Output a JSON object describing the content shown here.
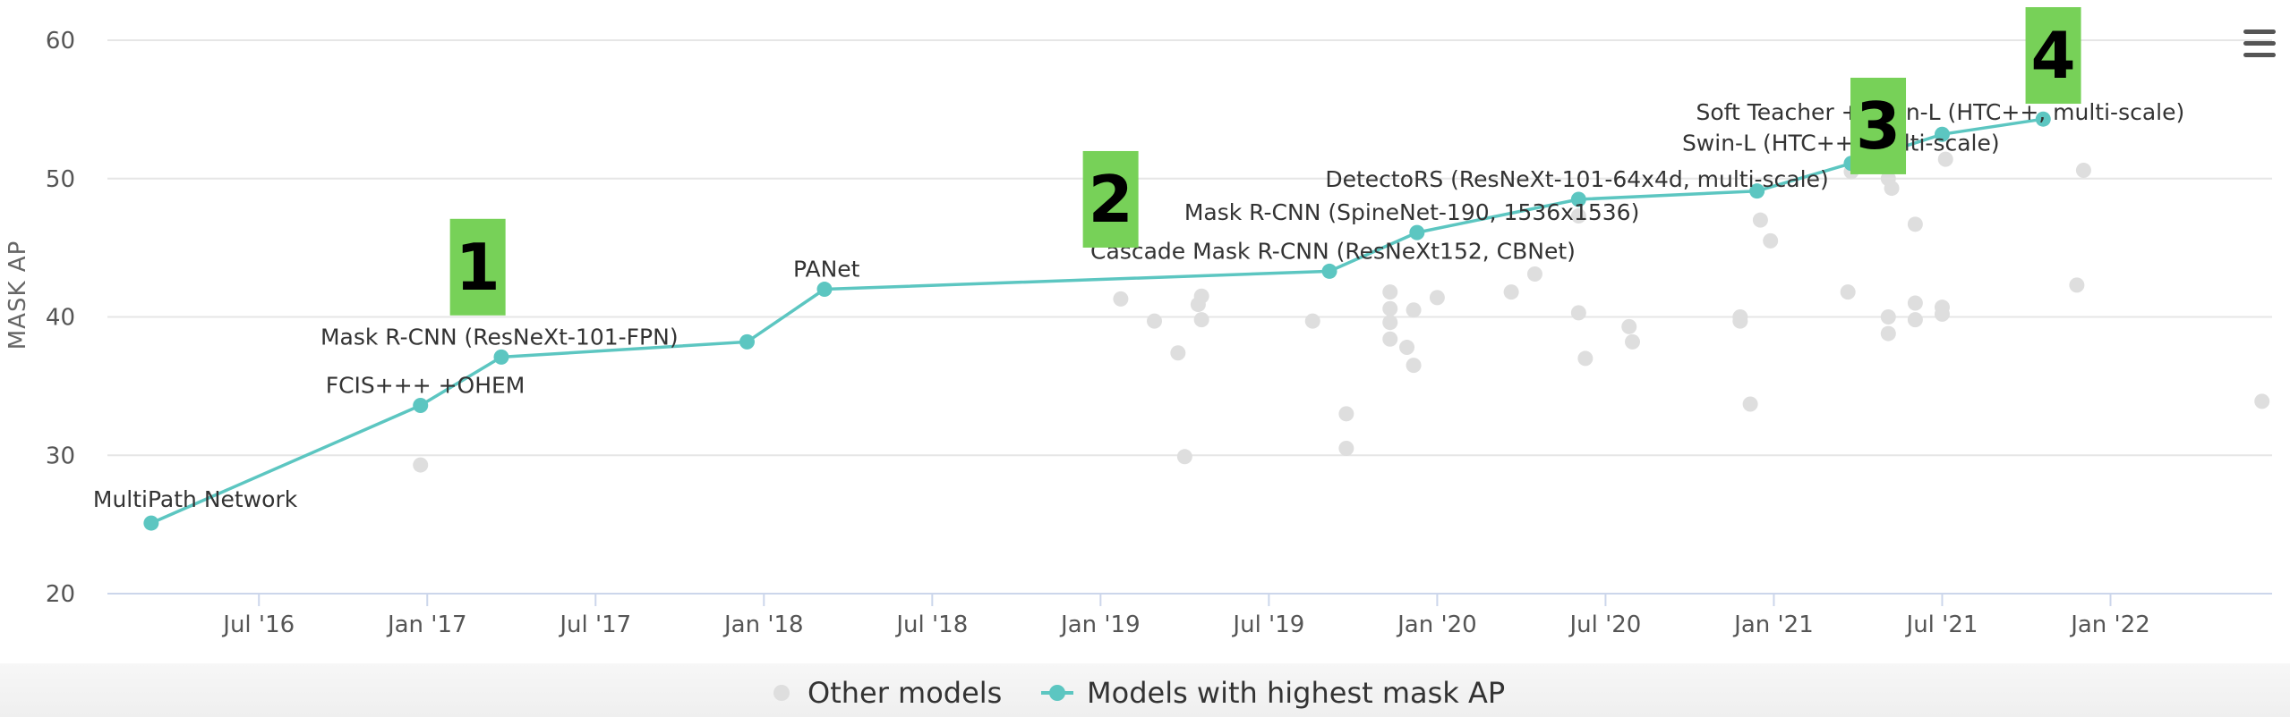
{
  "chart_data": {
    "type": "scatter",
    "title": "",
    "xlabel": "",
    "ylabel": "MASK AP",
    "ylim": [
      20,
      60
    ],
    "yticks": [
      20,
      30,
      40,
      50,
      60
    ],
    "xlim": [
      2016.05,
      2022.48
    ],
    "xticks": [
      {
        "label": "Jul '16",
        "x": 2016.5
      },
      {
        "label": "Jan '17",
        "x": 2017.0
      },
      {
        "label": "Jul '17",
        "x": 2017.5
      },
      {
        "label": "Jan '18",
        "x": 2018.0
      },
      {
        "label": "Jul '18",
        "x": 2018.5
      },
      {
        "label": "Jan '19",
        "x": 2019.0
      },
      {
        "label": "Jul '19",
        "x": 2019.5
      },
      {
        "label": "Jan '20",
        "x": 2020.0
      },
      {
        "label": "Jul '20",
        "x": 2020.5
      },
      {
        "label": "Jan '21",
        "x": 2021.0
      },
      {
        "label": "Jul '21",
        "x": 2021.5
      },
      {
        "label": "Jan '22",
        "x": 2022.0
      }
    ],
    "series": [
      {
        "name": "Other models",
        "color": "#dedede",
        "points": [
          {
            "x": 2016.98,
            "y": 29.3
          },
          {
            "x": 2019.06,
            "y": 41.3
          },
          {
            "x": 2019.16,
            "y": 39.7
          },
          {
            "x": 2019.23,
            "y": 37.4
          },
          {
            "x": 2019.25,
            "y": 29.9
          },
          {
            "x": 2019.29,
            "y": 40.9
          },
          {
            "x": 2019.3,
            "y": 41.5
          },
          {
            "x": 2019.3,
            "y": 39.8
          },
          {
            "x": 2019.63,
            "y": 39.7
          },
          {
            "x": 2019.73,
            "y": 33.0
          },
          {
            "x": 2019.73,
            "y": 30.5
          },
          {
            "x": 2019.86,
            "y": 41.8
          },
          {
            "x": 2019.86,
            "y": 40.6
          },
          {
            "x": 2019.86,
            "y": 39.6
          },
          {
            "x": 2019.86,
            "y": 38.4
          },
          {
            "x": 2019.91,
            "y": 37.8
          },
          {
            "x": 2019.93,
            "y": 36.5
          },
          {
            "x": 2019.93,
            "y": 40.5
          },
          {
            "x": 2020.0,
            "y": 41.4
          },
          {
            "x": 2020.22,
            "y": 41.8
          },
          {
            "x": 2020.29,
            "y": 43.1
          },
          {
            "x": 2020.42,
            "y": 40.3
          },
          {
            "x": 2020.44,
            "y": 37.0
          },
          {
            "x": 2020.42,
            "y": 47.3
          },
          {
            "x": 2020.57,
            "y": 39.3
          },
          {
            "x": 2020.58,
            "y": 38.2
          },
          {
            "x": 2020.9,
            "y": 40.0
          },
          {
            "x": 2020.9,
            "y": 39.7
          },
          {
            "x": 2020.93,
            "y": 33.7
          },
          {
            "x": 2020.96,
            "y": 47.0
          },
          {
            "x": 2020.99,
            "y": 45.5
          },
          {
            "x": 2021.23,
            "y": 50.5
          },
          {
            "x": 2021.22,
            "y": 41.8
          },
          {
            "x": 2021.34,
            "y": 50.0
          },
          {
            "x": 2021.35,
            "y": 49.3
          },
          {
            "x": 2021.34,
            "y": 40.0
          },
          {
            "x": 2021.34,
            "y": 38.8
          },
          {
            "x": 2021.42,
            "y": 46.7
          },
          {
            "x": 2021.42,
            "y": 41.0
          },
          {
            "x": 2021.42,
            "y": 39.8
          },
          {
            "x": 2021.5,
            "y": 40.7
          },
          {
            "x": 2021.5,
            "y": 40.2
          },
          {
            "x": 2021.51,
            "y": 51.4
          },
          {
            "x": 2021.92,
            "y": 50.6
          },
          {
            "x": 2021.9,
            "y": 42.3
          },
          {
            "x": 2022.45,
            "y": 33.9
          }
        ]
      },
      {
        "name": "Models with highest mask AP",
        "color": "#5cc6c1",
        "points": [
          {
            "x": 2016.18,
            "y": 25.1,
            "label": "MultiPath Network"
          },
          {
            "x": 2016.98,
            "y": 33.6,
            "label": "FCIS+++ +OHEM"
          },
          {
            "x": 2017.22,
            "y": 37.1,
            "label": "Mask R-CNN (ResNeXt-101-FPN)"
          },
          {
            "x": 2017.95,
            "y": 38.2
          },
          {
            "x": 2018.18,
            "y": 42.0,
            "label": "PANet"
          },
          {
            "x": 2019.68,
            "y": 43.3,
            "label": "Cascade Mask R-CNN (ResNeXt152, CBNet)"
          },
          {
            "x": 2019.94,
            "y": 46.1,
            "label": "Mask R-CNN (SpineNet-190, 1536x1536)"
          },
          {
            "x": 2020.42,
            "y": 48.5,
            "label": "DetectoRS (ResNeXt-101-64x4d, multi-scale)"
          },
          {
            "x": 2020.95,
            "y": 49.1
          },
          {
            "x": 2021.23,
            "y": 51.1,
            "label": "Swin-L (HTC++, multi-scale)"
          },
          {
            "x": 2021.5,
            "y": 53.2,
            "label": "Soft Teacher + Swin-L (HTC++, multi-scale)"
          },
          {
            "x": 2021.8,
            "y": 54.3
          }
        ]
      }
    ],
    "annotations": [
      {
        "text": "1",
        "x": 2017.15,
        "y": 43.6
      },
      {
        "text": "2",
        "x": 2019.03,
        "y": 48.5
      },
      {
        "text": "3",
        "x": 2021.31,
        "y": 53.8
      },
      {
        "text": "4",
        "x": 2021.83,
        "y": 58.9
      }
    ],
    "legend": {
      "position": "bottom-center",
      "items": [
        "Other models",
        "Models with highest mask AP"
      ]
    }
  },
  "ui": {
    "menu_icon": "hamburger-menu-icon"
  }
}
